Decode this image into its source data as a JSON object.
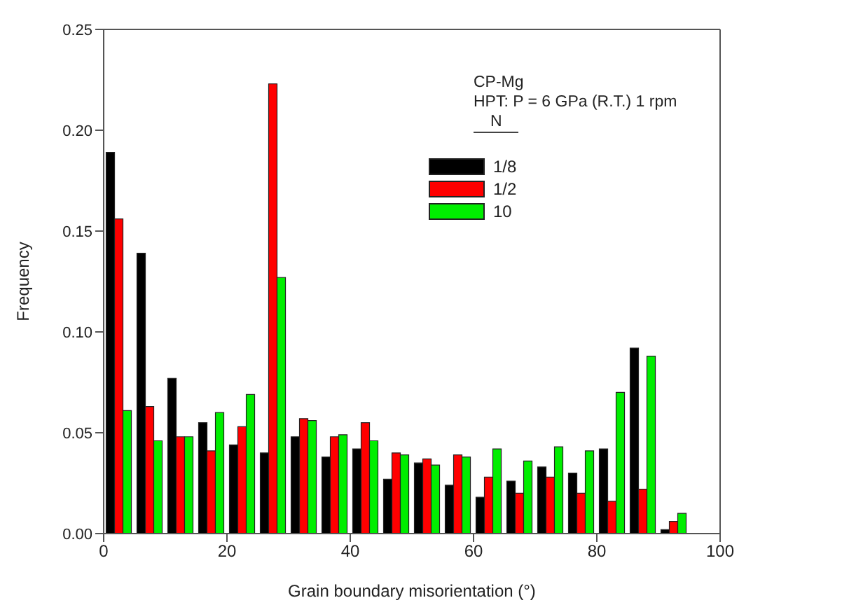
{
  "chart_data": {
    "type": "histogram",
    "xlabel": "Grain boundary misorientation (°)",
    "ylabel": "Frequency",
    "legend_title": "N",
    "annotations": [
      "CP-Mg",
      "HPT: P = 6 GPa (R.T.) 1 rpm"
    ],
    "bins": [
      0,
      5,
      10,
      15,
      20,
      25,
      30,
      35,
      40,
      45,
      50,
      55,
      60,
      65,
      70,
      75,
      80,
      85,
      90,
      95
    ],
    "series": [
      {
        "name": "1/8",
        "color": "#000000",
        "values": [
          0.189,
          0.139,
          0.077,
          0.055,
          0.044,
          0.04,
          0.048,
          0.038,
          0.042,
          0.027,
          0.035,
          0.024,
          0.018,
          0.026,
          0.033,
          0.03,
          0.042,
          0.092,
          0.002
        ]
      },
      {
        "name": "1/2",
        "color": "#ff0000",
        "values": [
          0.156,
          0.063,
          0.048,
          0.041,
          0.053,
          0.223,
          0.057,
          0.048,
          0.055,
          0.04,
          0.037,
          0.039,
          0.028,
          0.02,
          0.028,
          0.02,
          0.016,
          0.022,
          0.006
        ]
      },
      {
        "name": "10",
        "color": "#00ee00",
        "values": [
          0.061,
          0.046,
          0.048,
          0.06,
          0.069,
          0.127,
          0.056,
          0.049,
          0.046,
          0.039,
          0.034,
          0.038,
          0.042,
          0.036,
          0.043,
          0.041,
          0.07,
          0.088,
          0.01
        ]
      }
    ],
    "xlim": [
      0,
      100
    ],
    "xticks": [
      0,
      20,
      40,
      60,
      80,
      100
    ],
    "ylim": [
      0,
      0.25
    ],
    "yticks": [
      {
        "value": 0,
        "label": "0.00"
      },
      {
        "value": 0.05,
        "label": "0.05"
      },
      {
        "value": 0.1,
        "label": "0.10"
      },
      {
        "value": 0.15,
        "label": "0.15"
      },
      {
        "value": 0.2,
        "label": "0.20"
      },
      {
        "value": 0.25,
        "label": "0.25"
      }
    ],
    "legend": "top right",
    "grid": false
  }
}
